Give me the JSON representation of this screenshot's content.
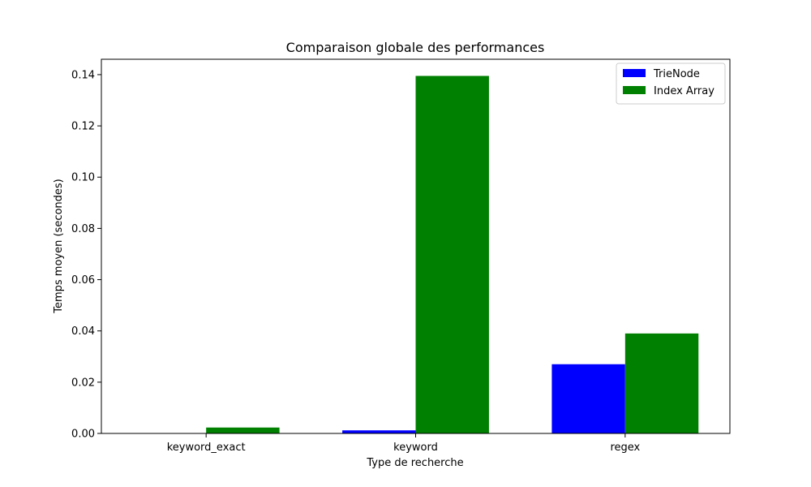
{
  "chart_data": {
    "type": "bar",
    "title": "Comparaison globale des performances",
    "xlabel": "Type de recherche",
    "ylabel": "Temps moyen (secondes)",
    "categories": [
      "keyword_exact",
      "keyword",
      "regex"
    ],
    "series": [
      {
        "name": "TrieNode",
        "color": "#0000ff",
        "values": [
          0.0,
          0.0012,
          0.027
        ]
      },
      {
        "name": "Index Array",
        "color": "#008000",
        "values": [
          0.0023,
          0.1395,
          0.039
        ]
      }
    ],
    "ylim": [
      0,
      0.146
    ],
    "yticks": [
      "0.00",
      "0.02",
      "0.04",
      "0.06",
      "0.08",
      "0.10",
      "0.12",
      "0.14"
    ],
    "legend_position": "top-right",
    "grid": false
  }
}
